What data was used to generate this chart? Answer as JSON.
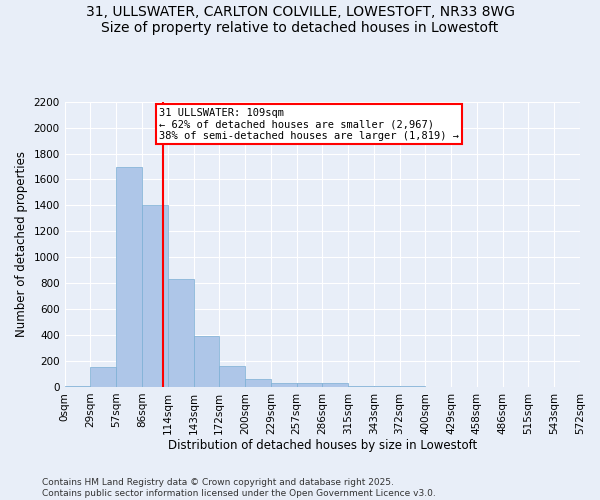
{
  "title_line1": "31, ULLSWATER, CARLTON COLVILLE, LOWESTOFT, NR33 8WG",
  "title_line2": "Size of property relative to detached houses in Lowestoft",
  "xlabel": "Distribution of detached houses by size in Lowestoft",
  "ylabel": "Number of detached properties",
  "footer_line1": "Contains HM Land Registry data © Crown copyright and database right 2025.",
  "footer_line2": "Contains public sector information licensed under the Open Government Licence v3.0.",
  "bar_values": [
    10,
    155,
    1700,
    1400,
    835,
    395,
    165,
    65,
    30,
    30,
    30,
    10,
    5,
    5,
    3,
    3,
    2,
    1,
    1,
    0
  ],
  "bin_labels": [
    "0sqm",
    "29sqm",
    "57sqm",
    "86sqm",
    "114sqm",
    "143sqm",
    "172sqm",
    "200sqm",
    "229sqm",
    "257sqm",
    "286sqm",
    "315sqm",
    "343sqm",
    "372sqm",
    "400sqm",
    "429sqm",
    "458sqm",
    "486sqm",
    "515sqm",
    "543sqm",
    "572sqm"
  ],
  "bar_color": "#aec6e8",
  "bar_edgecolor": "#7bafd4",
  "property_bin": 3.724,
  "vline_color": "red",
  "annotation_text": "31 ULLSWATER: 109sqm\n← 62% of detached houses are smaller (2,967)\n38% of semi-detached houses are larger (1,819) →",
  "annotation_box_color": "white",
  "annotation_box_edgecolor": "red",
  "ylim": [
    0,
    2200
  ],
  "yticks": [
    0,
    200,
    400,
    600,
    800,
    1000,
    1200,
    1400,
    1600,
    1800,
    2000,
    2200
  ],
  "background_color": "#e8eef8",
  "grid_color": "white",
  "title_fontsize": 10,
  "axis_label_fontsize": 8.5,
  "tick_fontsize": 7.5,
  "footer_fontsize": 6.5,
  "annot_fontsize": 7.5
}
